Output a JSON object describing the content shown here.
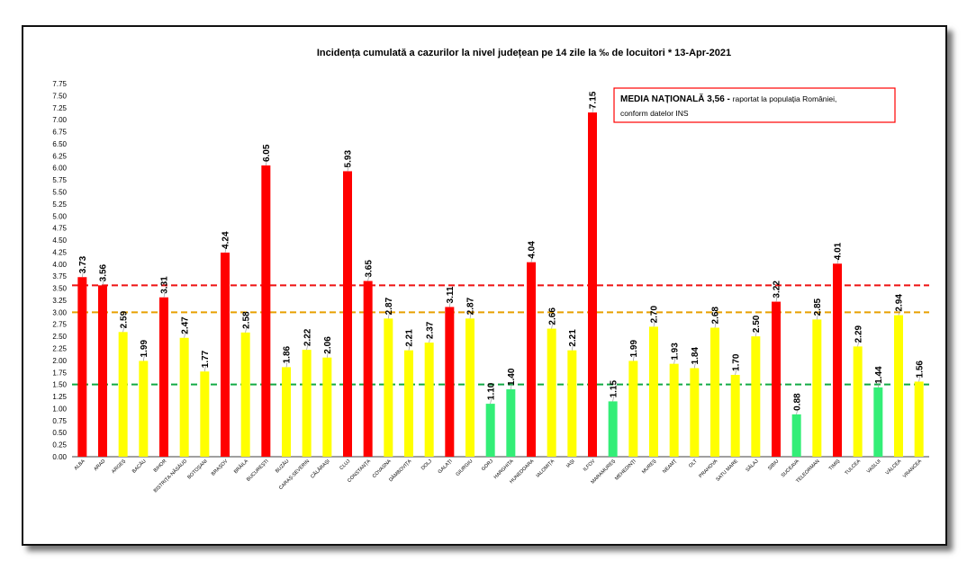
{
  "chart_data": {
    "type": "bar",
    "title": "Incidența cumulată a cazurilor la nivel județean pe 14 zile la ‰ de locuitori *   13-Apr-2021",
    "xlabel": "",
    "ylabel": "",
    "ylim": [
      0,
      7.75
    ],
    "ytick_step": 0.25,
    "grid": false,
    "categories": [
      "ALBA",
      "ARAD",
      "ARGEȘ",
      "BACĂU",
      "BIHOR",
      "BISTRIȚA-NĂSĂUD",
      "BOTOȘANI",
      "BRAȘOV",
      "BRĂILA",
      "BUCUREȘTI",
      "BUZĂU",
      "CARAȘ-SEVERIN",
      "CĂLĂRAȘI",
      "CLUJ",
      "CONSTANȚA",
      "COVASNA",
      "DÂMBOVIȚA",
      "DOLJ",
      "GALAȚI",
      "GIURGIU",
      "GORJ",
      "HARGHITA",
      "HUNEDOARA",
      "IALOMIȚA",
      "IAȘI",
      "ILFOV",
      "MARAMUREȘ",
      "MEHEDINȚI",
      "MUREȘ",
      "NEAMȚ",
      "OLT",
      "PRAHOVA",
      "SATU MARE",
      "SĂLAJ",
      "SIBIU",
      "SUCEAVA",
      "TELEORMAN",
      "TIMIȘ",
      "TULCEA",
      "VASLUI",
      "VÂLCEA",
      "VRANCEA"
    ],
    "values": [
      3.73,
      3.56,
      2.59,
      1.99,
      3.31,
      2.47,
      1.77,
      4.24,
      2.58,
      6.05,
      1.86,
      2.22,
      2.06,
      5.93,
      3.65,
      2.87,
      2.21,
      2.37,
      3.11,
      2.87,
      1.1,
      1.4,
      4.04,
      2.66,
      2.21,
      7.15,
      1.15,
      1.99,
      2.7,
      1.93,
      1.84,
      2.68,
      1.7,
      2.5,
      3.22,
      0.88,
      2.85,
      4.01,
      2.29,
      1.44,
      2.94,
      1.56
    ],
    "data_labels": [
      "3.73",
      "3.56",
      "2.59",
      "1.99",
      "3.31",
      "2.47",
      "1.77",
      "4.24",
      "2.58",
      "6.05",
      "1.86",
      "2.22",
      "2.06",
      "5.93",
      "3.65",
      "2.87",
      "2.21",
      "2.37",
      "3.11",
      "2.87",
      "1.10",
      "1.40",
      "4.04",
      "2.66",
      "2.21",
      "7.15",
      "1.15",
      "1.99",
      "2.70",
      "1.93",
      "1.84",
      "2.68",
      "1.70",
      "2.50",
      "3.22",
      "0.88",
      "2.85",
      "4.01",
      "2.29",
      "1.44",
      "2.94",
      "1.56"
    ],
    "colors": {
      "red": "#ff0000",
      "yellow": "#ffff00",
      "green": "#33ee77"
    },
    "color_rule": "red if value >= 3.0, yellow if 1.5 <= value < 3.0, green if value < 1.5",
    "reference_lines": [
      {
        "value": 3.56,
        "color": "#ee1111",
        "style": "dashed"
      },
      {
        "value": 3.0,
        "color": "#e8a000",
        "style": "dashed"
      },
      {
        "value": 1.5,
        "color": "#11aa44",
        "style": "dashed"
      }
    ],
    "annotation": {
      "bold": "MEDIA NAȚIONALĂ  3,56 - ",
      "line1": "raportat la populația României,",
      "line2": "conform datelor INS",
      "border_color": "#ff0000"
    }
  }
}
